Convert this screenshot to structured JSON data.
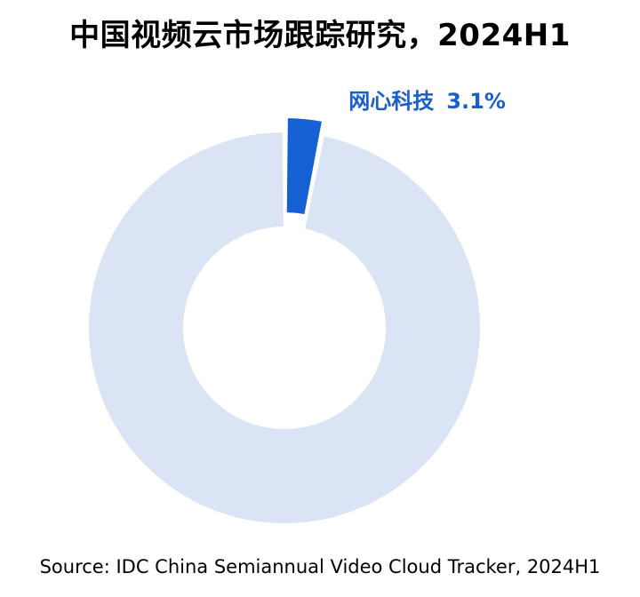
{
  "title": "中国视频云市场跟踪研究，2024H1",
  "source": "Source: IDC China Semiannual Video Cloud Tracker, 2024H1",
  "colors": {
    "highlight": "#1560d3",
    "rest": "#dbe4f4",
    "label": "#1a5fc9"
  },
  "chart_data": {
    "type": "pie",
    "title": "中国视频云市场跟踪研究，2024H1",
    "slices": [
      {
        "name": "网心科技",
        "label": "网心科技",
        "value": 3.1,
        "value_label": "3.1%",
        "exploded": true
      },
      {
        "name": "",
        "label": "",
        "value": 96.9,
        "value_label": ""
      }
    ]
  }
}
